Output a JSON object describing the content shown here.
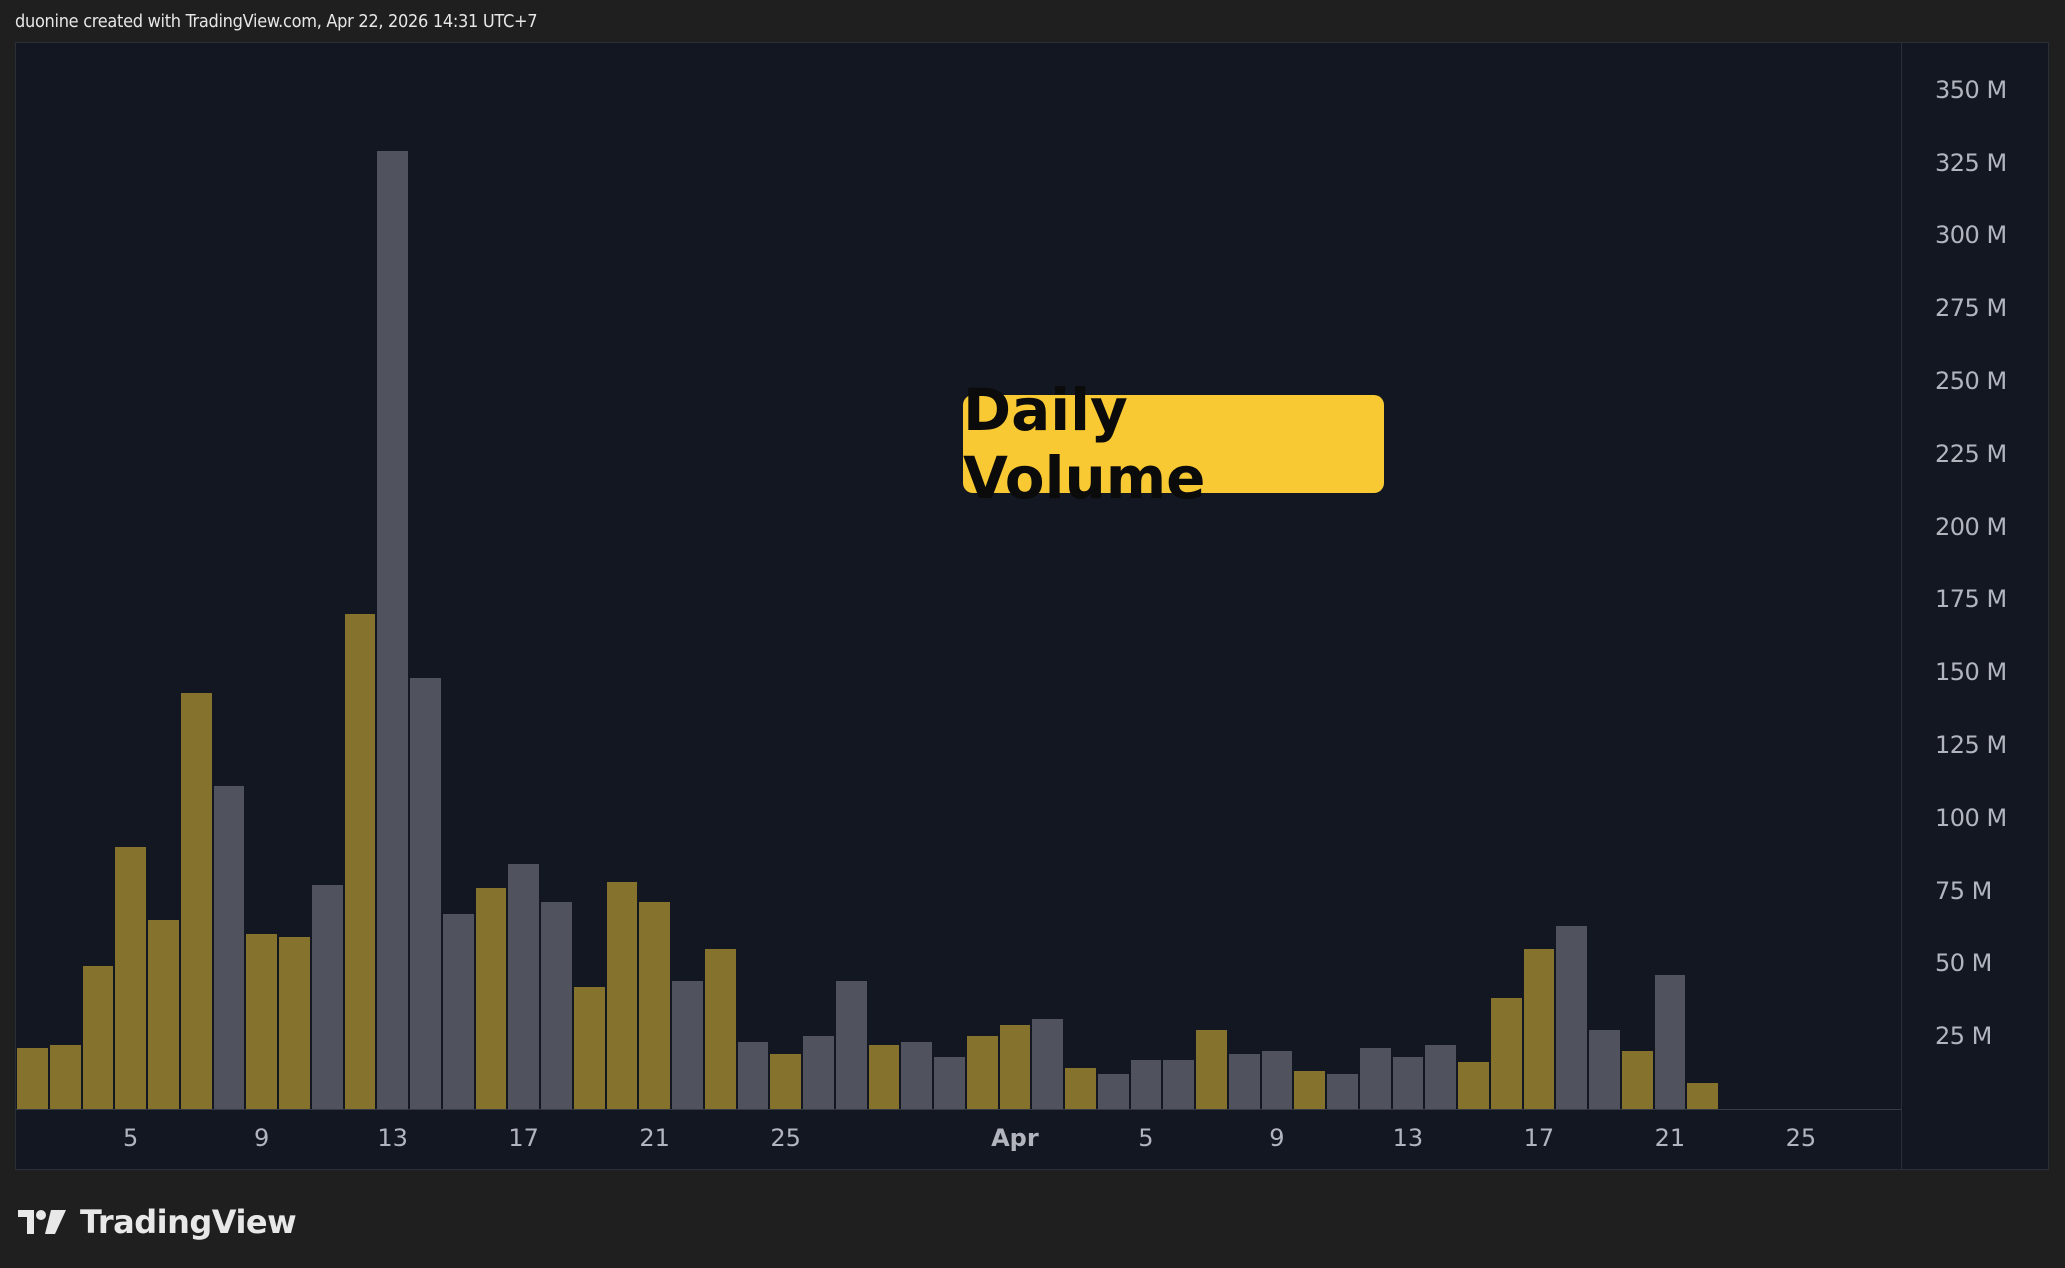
{
  "attribution": "duonine created with TradingView.com, Apr 22, 2026 14:31 UTC+7",
  "badge": {
    "label": "Daily Volume",
    "color": "#f9c933"
  },
  "logo": {
    "icon": "tradingview-logo-icon",
    "text": "TradingView"
  },
  "colors": {
    "up": "#85722d",
    "down": "#50535e",
    "background": "#131722",
    "outer": "#1f1f1f"
  },
  "price_axis": {
    "ticks": [
      "350 M",
      "325 M",
      "300 M",
      "275 M",
      "250 M",
      "225 M",
      "200 M",
      "175 M",
      "150 M",
      "125 M",
      "100 M",
      "75 M",
      "50 M",
      "25 M"
    ]
  },
  "time_axis": {
    "ticks": [
      {
        "label": "5",
        "index": 3
      },
      {
        "label": "9",
        "index": 7
      },
      {
        "label": "13",
        "index": 11
      },
      {
        "label": "17",
        "index": 15
      },
      {
        "label": "21",
        "index": 19
      },
      {
        "label": "25",
        "index": 23
      },
      {
        "label": "Apr",
        "index": 30,
        "month": true
      },
      {
        "label": "5",
        "index": 34
      },
      {
        "label": "9",
        "index": 38
      },
      {
        "label": "13",
        "index": 42
      },
      {
        "label": "17",
        "index": 46
      },
      {
        "label": "21",
        "index": 50
      },
      {
        "label": "25",
        "index": 54
      }
    ]
  },
  "chart_data": {
    "type": "bar",
    "title": "Daily Volume",
    "xlabel": "",
    "ylabel": "Volume",
    "ylim": [
      0,
      365
    ],
    "y_unit": "M",
    "grid": false,
    "categories": [
      "Mar 2",
      "Mar 3",
      "Mar 4",
      "Mar 5",
      "Mar 6",
      "Mar 7",
      "Mar 8",
      "Mar 9",
      "Mar 10",
      "Mar 11",
      "Mar 12",
      "Mar 13",
      "Mar 14",
      "Mar 15",
      "Mar 16",
      "Mar 17",
      "Mar 18",
      "Mar 19",
      "Mar 20",
      "Mar 21",
      "Mar 22",
      "Mar 23",
      "Mar 24",
      "Mar 25",
      "Mar 26",
      "Mar 27",
      "Mar 28",
      "Mar 29",
      "Mar 30",
      "Mar 31",
      "Apr 1",
      "Apr 2",
      "Apr 3",
      "Apr 4",
      "Apr 5",
      "Apr 6",
      "Apr 7",
      "Apr 8",
      "Apr 9",
      "Apr 10",
      "Apr 11",
      "Apr 12",
      "Apr 13",
      "Apr 14",
      "Apr 15",
      "Apr 16",
      "Apr 17",
      "Apr 18",
      "Apr 19",
      "Apr 20",
      "Apr 21",
      "Apr 22"
    ],
    "values": [
      21,
      22,
      49,
      90,
      65,
      143,
      111,
      60,
      59,
      77,
      170,
      329,
      148,
      67,
      76,
      84,
      71,
      42,
      78,
      71,
      44,
      55,
      23,
      19,
      25,
      44,
      22,
      23,
      18,
      25,
      29,
      31,
      14,
      12,
      17,
      17,
      27,
      19,
      20,
      13,
      12,
      21,
      18,
      22,
      16,
      38,
      55,
      63,
      27,
      20,
      46,
      9
    ],
    "direction": [
      "up",
      "up",
      "up",
      "up",
      "up",
      "up",
      "down",
      "up",
      "up",
      "down",
      "up",
      "down",
      "down",
      "down",
      "up",
      "down",
      "down",
      "up",
      "up",
      "up",
      "down",
      "up",
      "down",
      "up",
      "down",
      "down",
      "up",
      "down",
      "down",
      "up",
      "up",
      "down",
      "up",
      "down",
      "down",
      "down",
      "up",
      "down",
      "down",
      "up",
      "down",
      "down",
      "down",
      "down",
      "up",
      "up",
      "up",
      "down",
      "down",
      "up",
      "down",
      "up"
    ],
    "y_ticks": [
      25,
      50,
      75,
      100,
      125,
      150,
      175,
      200,
      225,
      250,
      275,
      300,
      325,
      350
    ]
  }
}
